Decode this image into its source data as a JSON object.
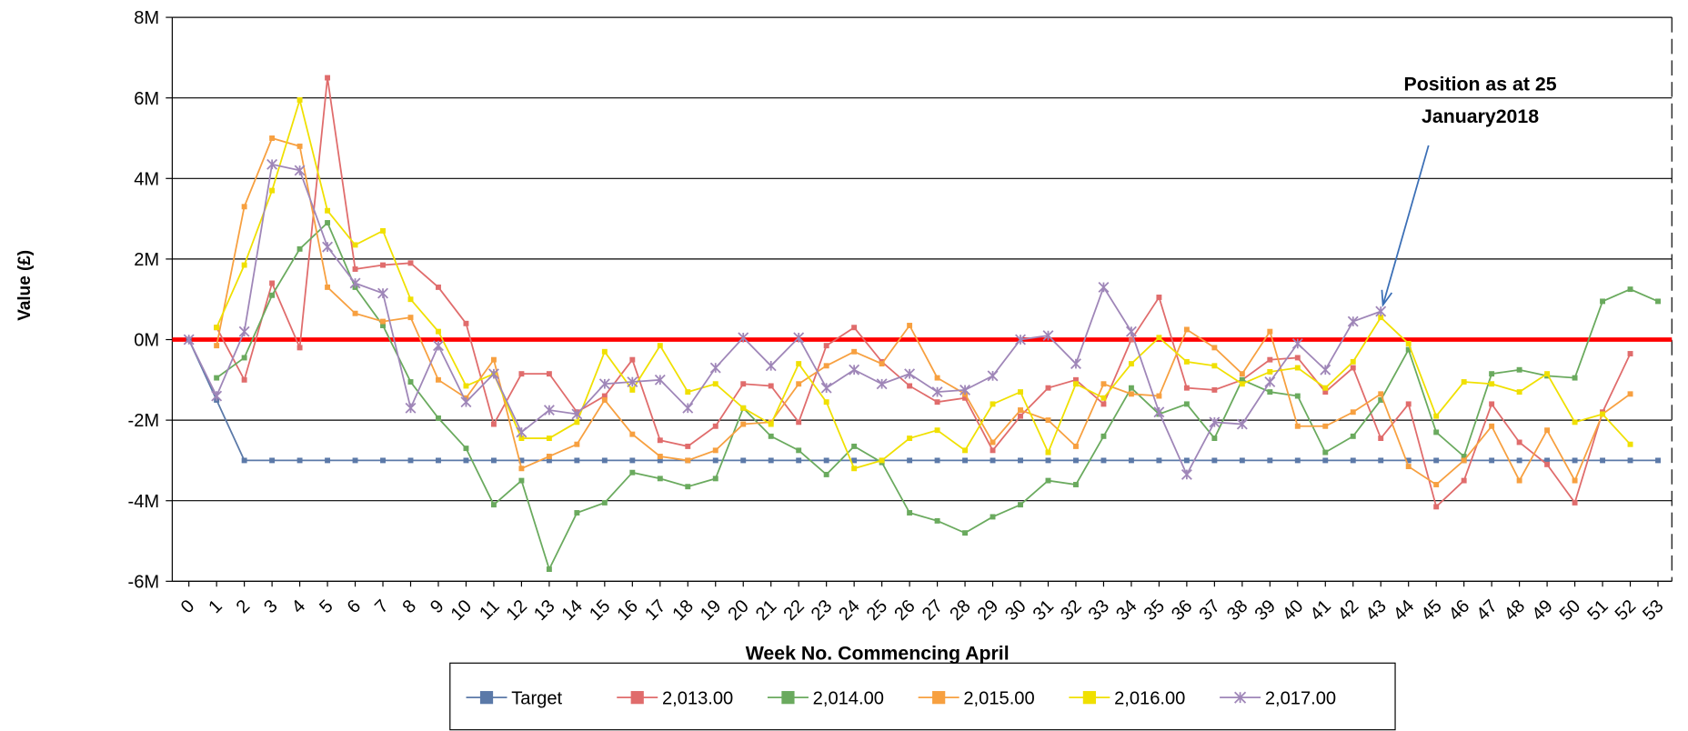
{
  "chart_data": {
    "type": "line",
    "y_label": "Value (£)",
    "x_label": "Week No. Commencing April",
    "annotation": [
      "Position as at 25",
      "January2018"
    ],
    "annotation_target": {
      "series": 5,
      "index": 43
    },
    "x": [
      0,
      1,
      2,
      3,
      4,
      5,
      6,
      7,
      8,
      9,
      10,
      11,
      12,
      13,
      14,
      15,
      16,
      17,
      18,
      19,
      20,
      21,
      22,
      23,
      24,
      25,
      26,
      27,
      28,
      29,
      30,
      31,
      32,
      33,
      34,
      35,
      36,
      37,
      38,
      39,
      40,
      41,
      42,
      43,
      44,
      45,
      46,
      47,
      48,
      49,
      50,
      51,
      52,
      53
    ],
    "xlim": [
      -0.6,
      53.5
    ],
    "xticks": [
      0,
      1,
      2,
      3,
      4,
      5,
      6,
      7,
      8,
      9,
      10,
      11,
      12,
      13,
      14,
      15,
      16,
      17,
      18,
      19,
      20,
      21,
      22,
      23,
      24,
      25,
      26,
      27,
      28,
      29,
      30,
      31,
      32,
      33,
      34,
      35,
      36,
      37,
      38,
      39,
      40,
      41,
      42,
      43,
      44,
      45,
      46,
      47,
      48,
      49,
      50,
      51,
      52,
      53
    ],
    "ylim": [
      -6000000,
      8000000
    ],
    "yticks": [
      {
        "value": -6000000,
        "label": "-6M"
      },
      {
        "value": -4000000,
        "label": "-4M"
      },
      {
        "value": -2000000,
        "label": "-2M"
      },
      {
        "value": 0,
        "label": "0M"
      },
      {
        "value": 2000000,
        "label": "2M"
      },
      {
        "value": 4000000,
        "label": "4M"
      },
      {
        "value": 6000000,
        "label": "6M"
      },
      {
        "value": 8000000,
        "label": "8M"
      }
    ],
    "grid": true,
    "grid_color": "#000000",
    "reference_line": 0,
    "reference_line_color": "#ff0000",
    "legend": "bottom",
    "series": [
      {
        "name": "Target",
        "color": "#5b79a8",
        "marker": "square",
        "values": [
          0,
          -1500000,
          -3000000,
          -3000000,
          -3000000,
          -3000000,
          -3000000,
          -3000000,
          -3000000,
          -3000000,
          -3000000,
          -3000000,
          -3000000,
          -3000000,
          -3000000,
          -3000000,
          -3000000,
          -3000000,
          -3000000,
          -3000000,
          -3000000,
          -3000000,
          -3000000,
          -3000000,
          -3000000,
          -3000000,
          -3000000,
          -3000000,
          -3000000,
          -3000000,
          -3000000,
          -3000000,
          -3000000,
          -3000000,
          -3000000,
          -3000000,
          -3000000,
          -3000000,
          -3000000,
          -3000000,
          -3000000,
          -3000000,
          -3000000,
          -3000000,
          -3000000,
          -3000000,
          -3000000,
          -3000000,
          -3000000,
          -3000000,
          -3000000,
          -3000000,
          -3000000,
          -3000000
        ]
      },
      {
        "name": "2,013.00",
        "color": "#e06c6c",
        "marker": "square",
        "values": [
          null,
          300000,
          -1000000,
          1400000,
          -200000,
          6500000,
          1750000,
          1850000,
          1900000,
          1300000,
          400000,
          -2100000,
          -850000,
          -850000,
          -1800000,
          -1400000,
          -500000,
          -2500000,
          -2650000,
          -2150000,
          -1100000,
          -1150000,
          -2050000,
          -150000,
          300000,
          -550000,
          -1150000,
          -1550000,
          -1450000,
          -2750000,
          -1900000,
          -1200000,
          -1000000,
          -1600000,
          0,
          1050000,
          -1200000,
          -1250000,
          -1000000,
          -500000,
          -450000,
          -1300000,
          -700000,
          -2450000,
          -1600000,
          -4150000,
          -3500000,
          -1600000,
          -2550000,
          -3100000,
          -4050000,
          -1800000,
          -350000,
          null
        ]
      },
      {
        "name": "2,014.00",
        "color": "#6aaa5e",
        "marker": "square",
        "values": [
          null,
          -950000,
          -450000,
          1100000,
          2250000,
          2900000,
          1300000,
          350000,
          -1050000,
          -1950000,
          -2700000,
          -4100000,
          -3500000,
          -5700000,
          -4300000,
          -4050000,
          -3300000,
          -3450000,
          -3650000,
          -3450000,
          -1700000,
          -2400000,
          -2750000,
          -3350000,
          -2650000,
          -3050000,
          -4300000,
          -4500000,
          -4800000,
          -4400000,
          -4100000,
          -3500000,
          -3600000,
          -2400000,
          -1200000,
          -1850000,
          -1600000,
          -2450000,
          -1000000,
          -1300000,
          -1400000,
          -2800000,
          -2400000,
          -1500000,
          -250000,
          -2300000,
          -2900000,
          -850000,
          -750000,
          -900000,
          -950000,
          950000,
          1250000,
          950000
        ]
      },
      {
        "name": "2,015.00",
        "color": "#f7a040",
        "marker": "square",
        "values": [
          null,
          -150000,
          3300000,
          5000000,
          4800000,
          1300000,
          650000,
          450000,
          550000,
          -1000000,
          -1450000,
          -500000,
          -3200000,
          -2900000,
          -2600000,
          -1500000,
          -2350000,
          -2900000,
          -3000000,
          -2750000,
          -2100000,
          -2050000,
          -1100000,
          -650000,
          -300000,
          -600000,
          350000,
          -950000,
          -1350000,
          -2550000,
          -1750000,
          -2000000,
          -2650000,
          -1100000,
          -1350000,
          -1400000,
          250000,
          -200000,
          -850000,
          200000,
          -2150000,
          -2150000,
          -1800000,
          -1350000,
          -3150000,
          -3600000,
          -3000000,
          -2150000,
          -3500000,
          -2250000,
          -3500000,
          -1850000,
          -1350000,
          null
        ]
      },
      {
        "name": "2,016.00",
        "color": "#f0e000",
        "marker": "square",
        "values": [
          null,
          300000,
          1850000,
          3700000,
          5950000,
          3200000,
          2350000,
          2700000,
          1000000,
          200000,
          -1150000,
          -850000,
          -2450000,
          -2450000,
          -2050000,
          -300000,
          -1250000,
          -150000,
          -1300000,
          -1100000,
          -1700000,
          -2100000,
          -600000,
          -1550000,
          -3200000,
          -3000000,
          -2450000,
          -2250000,
          -2750000,
          -1600000,
          -1300000,
          -2800000,
          -1100000,
          -1450000,
          -600000,
          50000,
          -550000,
          -650000,
          -1100000,
          -800000,
          -700000,
          -1200000,
          -550000,
          550000,
          -100000,
          -1900000,
          -1050000,
          -1100000,
          -1300000,
          -850000,
          -2050000,
          -1850000,
          -2600000,
          null
        ]
      },
      {
        "name": "2,017.00",
        "color": "#9f86b8",
        "marker": "x",
        "values": [
          0,
          -1400000,
          200000,
          4350000,
          4200000,
          2300000,
          1400000,
          1150000,
          -1700000,
          -150000,
          -1550000,
          -850000,
          -2300000,
          -1750000,
          -1850000,
          -1100000,
          -1050000,
          -1000000,
          -1700000,
          -700000,
          50000,
          -650000,
          50000,
          -1200000,
          -750000,
          -1100000,
          -850000,
          -1300000,
          -1250000,
          -900000,
          0,
          100000,
          -600000,
          1300000,
          200000,
          -1800000,
          -3350000,
          -2050000,
          -2100000,
          -1050000,
          -100000,
          -750000,
          450000,
          700000,
          null,
          null,
          null,
          null,
          null,
          null,
          null,
          null,
          null,
          null
        ]
      }
    ]
  }
}
